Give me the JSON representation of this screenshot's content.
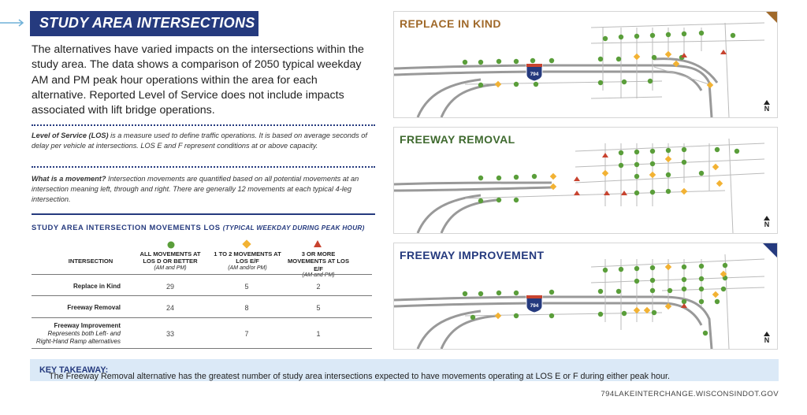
{
  "title": "STUDY AREA INTERSECTIONS",
  "intro": "The alternatives have varied impacts on the intersections within the study area. The data shows a comparison of 2050 typical weekday AM and PM peak hour operations within the area for each alternative. Reported Level of Service does not include impacts associated with lift bridge operations.",
  "los_note": {
    "term": "Level of Service (LOS)",
    "text": " is a measure used to define traffic operations. It is based on average seconds of delay per vehicle at intersections. LOS E and F represent conditions at or above capacity."
  },
  "movement_note": {
    "term": "What is a movement?",
    "text": " Intersection movements are quantified based on all potential movements at an intersection meaning left, through and right. There are generally 12 movements at each typical 4-leg intersection."
  },
  "table": {
    "title": "STUDY AREA INTERSECTION MOVEMENTS LOS",
    "title_sub": "(TYPICAL WEEKDAY DURING PEAK HOUR)",
    "col_intersection": "INTERSECTION",
    "col1": "ALL MOVEMENTS AT LOS D OR BETTER",
    "col1_sub": "(AM and PM)",
    "col2": "1 TO 2 MOVEMENTS AT LOS E/F",
    "col2_sub": "(AM and/or PM)",
    "col3": "3 OR MORE MOVEMENTS AT LOS E/F",
    "col3_sub": "(AM and PM)",
    "rows": [
      {
        "name": "Replace in Kind",
        "sub": "",
        "a": "29",
        "b": "5",
        "c": "2"
      },
      {
        "name": "Freeway Removal",
        "sub": "",
        "a": "24",
        "b": "8",
        "c": "5"
      },
      {
        "name": "Freeway Improvement",
        "sub": "Represents both Left- and Right-Hand Ramp alternatives",
        "a": "33",
        "b": "7",
        "c": "1"
      }
    ]
  },
  "panels": [
    {
      "title": "REPLACE IN KIND",
      "color": "#a0692a",
      "shield": "794",
      "north": "N"
    },
    {
      "title": "FREEWAY REMOVAL",
      "color": "#3f6a2f",
      "shield": "",
      "north": "N"
    },
    {
      "title": "FREEWAY IMPROVEMENT",
      "color": "#253a7e",
      "shield": "794",
      "north": "N"
    }
  ],
  "takeaway": {
    "label": "KEY TAKEAWAY:",
    "text": " The Freeway Removal alternative has the greatest number of study area intersections expected to have movements operating at LOS E or F during either peak hour."
  },
  "url": "794LAKEINTERCHANGE.WISCONSINDOT.GOV",
  "colors": {
    "green": "#5a9e3a",
    "yellow": "#f2b233",
    "red": "#c8432f",
    "navy": "#253a7e"
  }
}
